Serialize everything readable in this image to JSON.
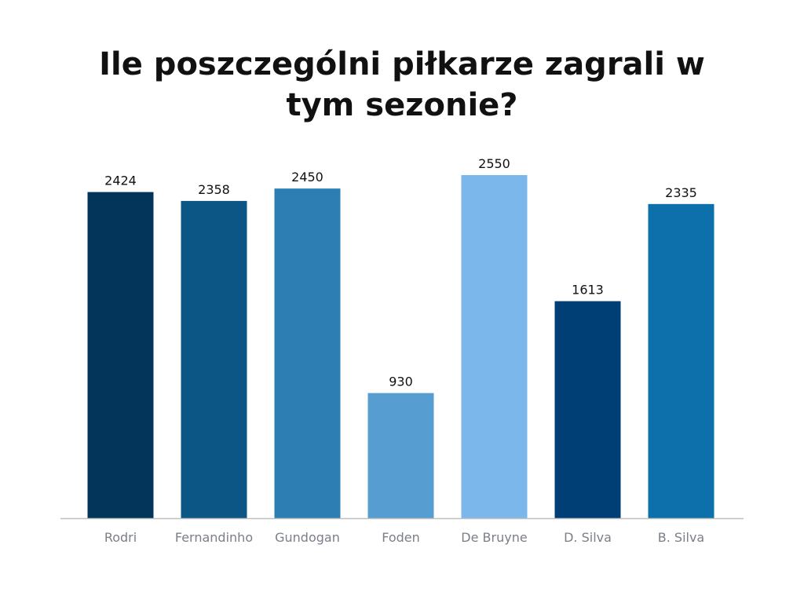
{
  "chart_data": {
    "type": "bar",
    "title": "Ile poszczególni piłkarze zagrali w tym sezonie?",
    "xlabel": "",
    "ylabel": "",
    "categories": [
      "Rodri",
      "Fernandinho",
      "Gundogan",
      "Foden",
      "De Bruyne",
      "D. Silva",
      "B. Silva"
    ],
    "values": [
      2424,
      2358,
      2450,
      930,
      2550,
      1613,
      2335
    ],
    "value_labels": [
      "2424",
      "2358",
      "2450",
      "930",
      "2550",
      "1613",
      "2335"
    ],
    "colors": [
      "#033459",
      "#0b5684",
      "#2d7fb3",
      "#569dd1",
      "#7bb7ea",
      "#003f76",
      "#0d70aa"
    ],
    "axis_color": "#bfbfbf",
    "ylim": [
      0,
      2550
    ],
    "grid": false,
    "legend": "none"
  }
}
